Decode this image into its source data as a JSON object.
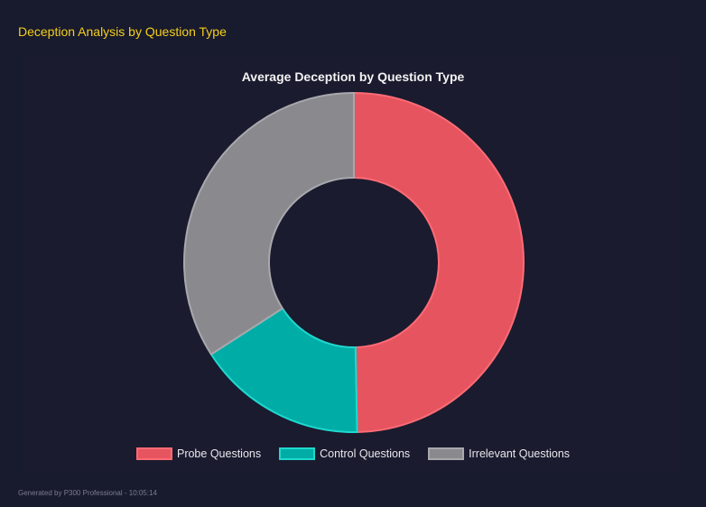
{
  "header": {
    "title": "Deception Analysis by Question Type"
  },
  "chart_data": {
    "type": "pie",
    "variant": "doughnut",
    "title": "Average Deception by Question Type",
    "categories": [
      "Probe Questions",
      "Control Questions",
      "Irrelevant Questions"
    ],
    "values": [
      49.7,
      16.2,
      34.1
    ],
    "colors": [
      "#e5545f",
      "#00ada6",
      "#8a898e"
    ],
    "border_colors": [
      "#ff6b75",
      "#1fd8cf",
      "#a8a8ad"
    ],
    "legend_position": "bottom"
  },
  "footer": {
    "text": "Generated by P300 Professional - 10:05:14"
  }
}
